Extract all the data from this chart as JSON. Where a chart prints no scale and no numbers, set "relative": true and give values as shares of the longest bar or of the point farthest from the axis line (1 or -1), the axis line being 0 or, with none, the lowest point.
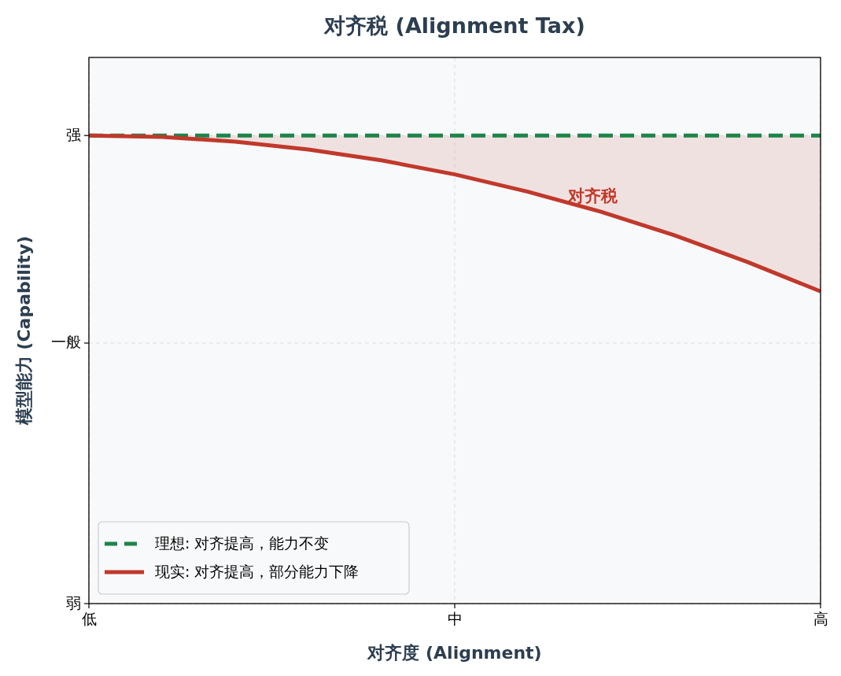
{
  "chart_data": {
    "type": "line",
    "title": "对齐税 (Alignment Tax)",
    "xlabel": "对齐度 (Alignment)",
    "ylabel": "模型能力 (Capability)",
    "categories": [
      "低",
      null,
      null,
      null,
      null,
      "中",
      null,
      null,
      null,
      null,
      "高"
    ],
    "relative": true,
    "series": [
      {
        "name": "理想: 对齐提高，能力不变",
        "color": "#1e8449",
        "line_style": "dashed",
        "values": [
          1,
          1,
          1,
          1,
          1,
          1,
          1,
          1,
          1,
          1,
          1
        ]
      },
      {
        "name": "现实: 对齐提高，部分能力下降",
        "color": "#c0392b",
        "line_style": "solid",
        "values": [
          1,
          0.997,
          0.987,
          0.97,
          0.947,
          0.917,
          0.88,
          0.837,
          0.787,
          0.73,
          0.667
        ],
        "lower": [
          1,
          0.997,
          0.987,
          0.97,
          0.947,
          0.917,
          0.88,
          0.837,
          0.787,
          0.73,
          0.667
        ],
        "upper": [
          1,
          1,
          1,
          1,
          1,
          1,
          1,
          1,
          1,
          1,
          1
        ]
      }
    ],
    "annotations": [
      "对齐税",
      "弱",
      "一般",
      "强"
    ],
    "grid": true,
    "legend": "bottom left",
    "marker": "none"
  }
}
